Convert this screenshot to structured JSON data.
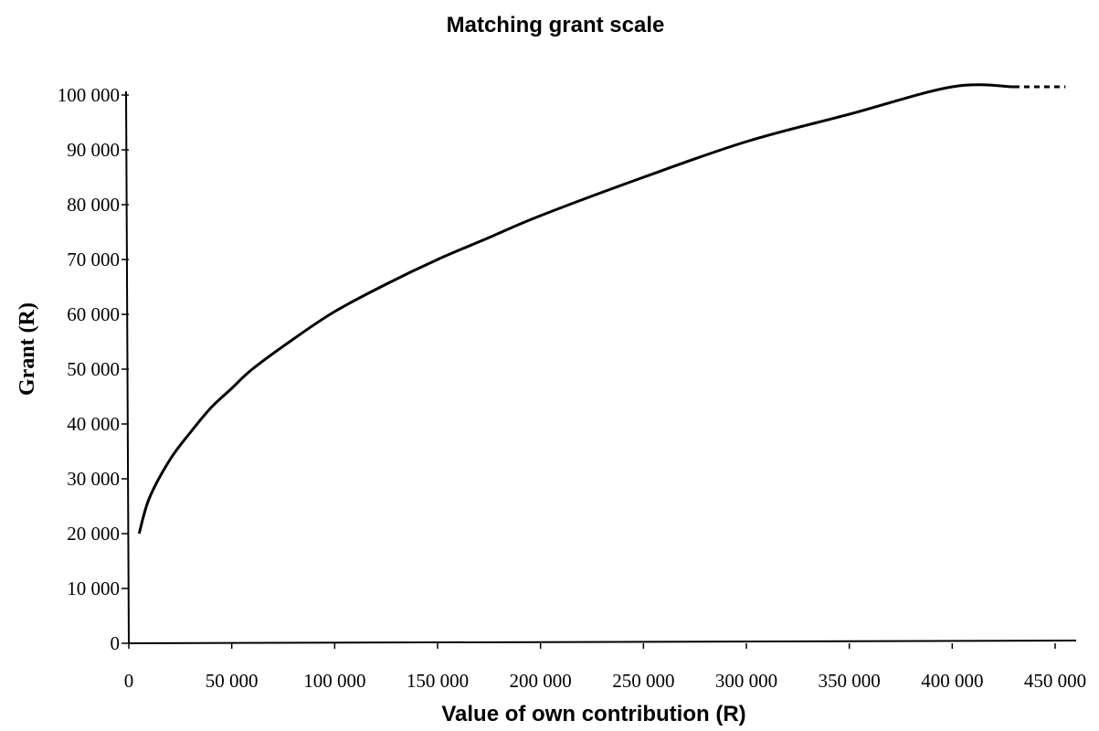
{
  "chart_data": {
    "type": "line",
    "title": "Matching grant scale",
    "xlabel": "Value of own contribution (R)",
    "ylabel": "Grant (R)",
    "xlim": [
      0,
      450000
    ],
    "ylim": [
      0,
      100000
    ],
    "x_ticks": [
      0,
      50000,
      100000,
      150000,
      200000,
      250000,
      300000,
      350000,
      400000,
      450000
    ],
    "x_tick_labels": [
      "0",
      "50 000",
      "100 000",
      "150 000",
      "200 000",
      "250 000",
      "300 000",
      "350 000",
      "400 000",
      "450 000"
    ],
    "y_ticks": [
      0,
      10000,
      20000,
      30000,
      40000,
      50000,
      60000,
      70000,
      80000,
      90000,
      100000
    ],
    "y_tick_labels": [
      "0",
      "10 000",
      "20 000",
      "30 000",
      "40 000",
      "50 000",
      "60 000",
      "70 000",
      "80 000",
      "90 000",
      "100 000"
    ],
    "grid": false,
    "series": [
      {
        "x": [
          5000,
          10000,
          20000,
          30000,
          40000,
          50000,
          60000,
          80000,
          100000,
          125000,
          150000,
          175000,
          200000,
          250000,
          300000,
          350000,
          400000,
          430000
        ],
        "values": [
          20000,
          26500,
          33500,
          38500,
          43000,
          46500,
          50000,
          55500,
          60500,
          65500,
          70000,
          74000,
          78000,
          85000,
          91500,
          96500,
          101500,
          101500
        ],
        "color": "#000000"
      }
    ],
    "cap_extension": {
      "from_x": 430000,
      "to_x": 455000,
      "value": 101500,
      "style": "dashed"
    }
  }
}
